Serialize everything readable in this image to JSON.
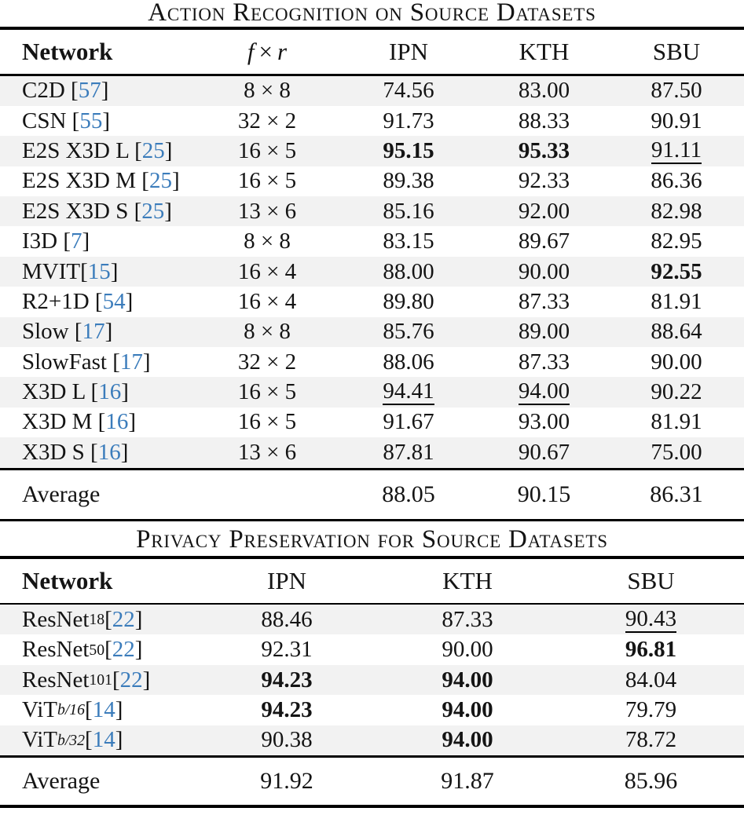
{
  "colors": {
    "citation_blue": "#3b7cbb",
    "row_stripe": "#f2f2f2",
    "rule_black": "#000000",
    "text": "#141414",
    "background": "#ffffff"
  },
  "table1": {
    "title": "Action Recognition on Source Datasets",
    "header": {
      "network": "Network",
      "fr_f": "f",
      "fr_times": "×",
      "fr_r": "r",
      "ipn": "IPN",
      "kth": "KTH",
      "sbu": "SBU"
    },
    "rows": [
      {
        "name": "C2D",
        "sub": "",
        "nospace": false,
        "cite": "57",
        "fr": "8 × 8",
        "vals": [
          [
            "74.56",
            ""
          ],
          [
            "83.00",
            ""
          ],
          [
            "87.50",
            ""
          ]
        ]
      },
      {
        "name": "CSN",
        "sub": "",
        "nospace": false,
        "cite": "55",
        "fr": "32 × 2",
        "vals": [
          [
            "91.73",
            ""
          ],
          [
            "88.33",
            ""
          ],
          [
            "90.91",
            ""
          ]
        ]
      },
      {
        "name": "E2S X3D L",
        "sub": "",
        "nospace": false,
        "cite": "25",
        "fr": "16 × 5",
        "vals": [
          [
            "95.15",
            "b"
          ],
          [
            "95.33",
            "b"
          ],
          [
            "91.11",
            "u"
          ]
        ]
      },
      {
        "name": "E2S X3D M",
        "sub": "",
        "nospace": false,
        "cite": "25",
        "fr": "16 × 5",
        "vals": [
          [
            "89.38",
            ""
          ],
          [
            "92.33",
            ""
          ],
          [
            "86.36",
            ""
          ]
        ]
      },
      {
        "name": "E2S X3D S",
        "sub": "",
        "nospace": false,
        "cite": "25",
        "fr": "13 × 6",
        "vals": [
          [
            "85.16",
            ""
          ],
          [
            "92.00",
            ""
          ],
          [
            "82.98",
            ""
          ]
        ]
      },
      {
        "name": "I3D",
        "sub": "",
        "nospace": false,
        "cite": "7",
        "fr": "8 × 8",
        "vals": [
          [
            "83.15",
            ""
          ],
          [
            "89.67",
            ""
          ],
          [
            "82.95",
            ""
          ]
        ]
      },
      {
        "name": "MVIT",
        "sub": "",
        "nospace": true,
        "cite": "15",
        "fr": "16 × 4",
        "vals": [
          [
            "88.00",
            ""
          ],
          [
            "90.00",
            ""
          ],
          [
            "92.55",
            "b"
          ]
        ]
      },
      {
        "name": "R2+1D",
        "sub": "",
        "nospace": false,
        "cite": "54",
        "fr": "16 × 4",
        "vals": [
          [
            "89.80",
            ""
          ],
          [
            "87.33",
            ""
          ],
          [
            "81.91",
            ""
          ]
        ]
      },
      {
        "name": "Slow",
        "sub": "",
        "nospace": false,
        "cite": "17",
        "fr": "8 × 8",
        "vals": [
          [
            "85.76",
            ""
          ],
          [
            "89.00",
            ""
          ],
          [
            "88.64",
            ""
          ]
        ]
      },
      {
        "name": "SlowFast",
        "sub": "",
        "nospace": false,
        "cite": "17",
        "fr": "32 × 2",
        "vals": [
          [
            "88.06",
            ""
          ],
          [
            "87.33",
            ""
          ],
          [
            "90.00",
            ""
          ]
        ]
      },
      {
        "name": "X3D L",
        "sub": "",
        "nospace": false,
        "cite": "16",
        "fr": "16 × 5",
        "vals": [
          [
            "94.41",
            "u"
          ],
          [
            "94.00",
            "u"
          ],
          [
            "90.22",
            ""
          ]
        ]
      },
      {
        "name": "X3D M",
        "sub": "",
        "nospace": false,
        "cite": "16",
        "fr": "16 × 5",
        "vals": [
          [
            "91.67",
            ""
          ],
          [
            "93.00",
            ""
          ],
          [
            "81.91",
            ""
          ]
        ]
      },
      {
        "name": "X3D S",
        "sub": "",
        "nospace": false,
        "cite": "16",
        "fr": "13 × 6",
        "vals": [
          [
            "87.81",
            ""
          ],
          [
            "90.67",
            ""
          ],
          [
            "75.00",
            ""
          ]
        ]
      }
    ],
    "average": {
      "label": "Average",
      "ipn": "88.05",
      "kth": "90.15",
      "sbu": "86.31"
    }
  },
  "table2": {
    "title": "Privacy Preservation for Source Datasets",
    "header": {
      "network": "Network",
      "ipn": "IPN",
      "kth": "KTH",
      "sbu": "SBU"
    },
    "rows": [
      {
        "name": "ResNet",
        "sub": "18",
        "subitalic": false,
        "nospace": false,
        "cite": "22",
        "vals": [
          [
            "88.46",
            ""
          ],
          [
            "87.33",
            ""
          ],
          [
            "90.43",
            "u"
          ]
        ]
      },
      {
        "name": "ResNet",
        "sub": "50",
        "subitalic": false,
        "nospace": false,
        "cite": "22",
        "vals": [
          [
            "92.31",
            ""
          ],
          [
            "90.00",
            ""
          ],
          [
            "96.81",
            "b"
          ]
        ]
      },
      {
        "name": "ResNet",
        "sub": "101",
        "subitalic": false,
        "nospace": false,
        "cite": "22",
        "vals": [
          [
            "94.23",
            "b"
          ],
          [
            "94.00",
            "b"
          ],
          [
            "84.04",
            ""
          ]
        ]
      },
      {
        "name": "ViT",
        "sub": "b/16",
        "subitalic": true,
        "nospace": true,
        "cite": "14",
        "vals": [
          [
            "94.23",
            "b"
          ],
          [
            "94.00",
            "b"
          ],
          [
            "79.79",
            ""
          ]
        ]
      },
      {
        "name": "ViT",
        "sub": "b/32",
        "subitalic": true,
        "nospace": true,
        "cite": "14",
        "vals": [
          [
            "90.38",
            ""
          ],
          [
            "94.00",
            "b"
          ],
          [
            "78.72",
            ""
          ]
        ]
      }
    ],
    "average": {
      "label": "Average",
      "ipn": "91.92",
      "kth": "91.87",
      "sbu": "85.96"
    }
  }
}
